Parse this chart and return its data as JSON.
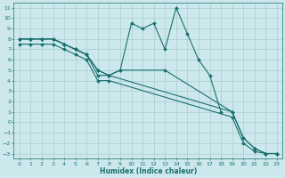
{
  "xlabel": "Humidex (Indice chaleur)",
  "background_color": "#cce8ec",
  "grid_color": "#aacccc",
  "line_color": "#1a7070",
  "xlim": [
    -0.5,
    23.5
  ],
  "ylim": [
    -3.5,
    11.5
  ],
  "xticks": [
    0,
    1,
    2,
    3,
    4,
    5,
    6,
    7,
    8,
    9,
    10,
    11,
    12,
    13,
    14,
    15,
    16,
    17,
    18,
    19,
    20,
    21,
    22,
    23
  ],
  "yticks": [
    -3,
    -2,
    -1,
    0,
    1,
    2,
    3,
    4,
    5,
    6,
    7,
    8,
    9,
    10,
    11
  ],
  "lines": [
    {
      "x": [
        0,
        1,
        2,
        3,
        4,
        5,
        6,
        7,
        8,
        9,
        10,
        11,
        12,
        13,
        14,
        15,
        16,
        17,
        18
      ],
      "y": [
        8.0,
        8.0,
        8.0,
        8.0,
        7.5,
        7.0,
        6.5,
        5.0,
        4.5,
        5.0,
        9.5,
        9.0,
        9.5,
        7.0,
        11.0,
        8.5,
        6.0,
        4.5,
        1.0
      ]
    },
    {
      "x": [
        0,
        1,
        2,
        3,
        4,
        5,
        6,
        7,
        8,
        9,
        13,
        19,
        20,
        21,
        22,
        23
      ],
      "y": [
        8.0,
        8.0,
        8.0,
        8.0,
        7.5,
        7.0,
        6.5,
        5.0,
        4.5,
        5.0,
        5.0,
        1.0,
        -1.5,
        -2.5,
        -3.0,
        -3.0
      ]
    },
    {
      "x": [
        0,
        1,
        2,
        3,
        4,
        5,
        6,
        7,
        8,
        19,
        20,
        21,
        22,
        23
      ],
      "y": [
        8.0,
        8.0,
        8.0,
        8.0,
        7.5,
        7.0,
        6.5,
        4.5,
        4.5,
        1.0,
        -1.5,
        -2.5,
        -3.0,
        -3.0
      ]
    },
    {
      "x": [
        0,
        1,
        2,
        3,
        4,
        5,
        6,
        7,
        8,
        19,
        20,
        21,
        22,
        23
      ],
      "y": [
        7.5,
        7.5,
        7.5,
        7.5,
        7.0,
        6.5,
        6.0,
        4.0,
        4.0,
        0.5,
        -2.0,
        -2.8,
        -3.0,
        -3.0
      ]
    }
  ]
}
